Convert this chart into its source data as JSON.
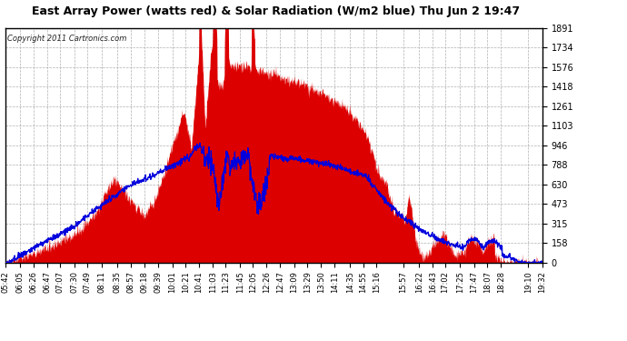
{
  "title_full": "East Array Power (watts red) & Solar Radiation (W/m2 blue) Thu Jun 2 19:47",
  "copyright": "Copyright 2011 Cartronics.com",
  "ymax": 1891.2,
  "yticks": [
    0.0,
    157.6,
    315.2,
    472.8,
    630.4,
    788.0,
    945.6,
    1103.2,
    1260.8,
    1418.4,
    1576.0,
    1733.6,
    1891.2
  ],
  "bg_color": "#ffffff",
  "plot_bg_color": "#ffffff",
  "grid_color": "#b0b0b0",
  "fill_color": "#dd0000",
  "line_color": "#0000dd",
  "title_color": "#000000",
  "border_color": "#000000",
  "xtick_labels": [
    "05:42",
    "06:05",
    "06:26",
    "06:47",
    "07:07",
    "07:30",
    "07:49",
    "08:11",
    "08:35",
    "08:57",
    "09:18",
    "09:39",
    "10:01",
    "10:21",
    "10:41",
    "11:03",
    "11:23",
    "11:45",
    "12:05",
    "12:26",
    "12:47",
    "13:09",
    "13:29",
    "13:50",
    "14:11",
    "14:35",
    "14:55",
    "15:16",
    "15:57",
    "16:22",
    "16:43",
    "17:02",
    "17:25",
    "17:47",
    "18:07",
    "18:28",
    "19:10",
    "19:32"
  ]
}
